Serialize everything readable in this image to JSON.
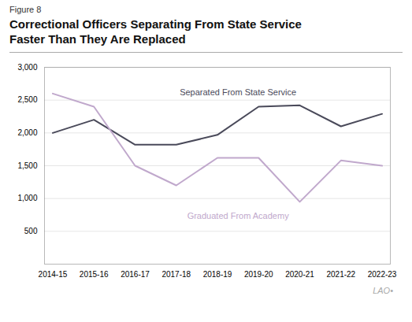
{
  "chart_data": {
    "type": "line",
    "title": "Correctional Officers Separating From State Service\nFaster Than They Are Replaced",
    "annotations": [
      {
        "text": "Figure 8"
      },
      {
        "text": "LAO•"
      }
    ],
    "categories": [
      "2014-15",
      "2015-16",
      "2016-17",
      "2017-18",
      "2018-19",
      "2019-20",
      "2020-21",
      "2021-22",
      "2022-23"
    ],
    "series": [
      {
        "name": "Separated From State Service",
        "color": "#4a4a5a",
        "values": [
          2000,
          2200,
          1820,
          1820,
          1970,
          2400,
          2420,
          2100,
          2290
        ]
      },
      {
        "name": "Graduated From Academy",
        "color": "#c0a8cc",
        "values": [
          2600,
          2400,
          1500,
          1200,
          1620,
          1620,
          950,
          1580,
          1500
        ]
      }
    ],
    "ylim": [
      0,
      3000
    ],
    "yticks": [
      500,
      {
        "value": 1000,
        "label": "1,000"
      },
      {
        "value": 1500,
        "label": "1,500"
      },
      {
        "value": 2000,
        "label": "2,000"
      },
      {
        "value": 2500,
        "label": "2,500"
      },
      {
        "value": 3000,
        "label": "3,000"
      }
    ],
    "grid": true
  }
}
